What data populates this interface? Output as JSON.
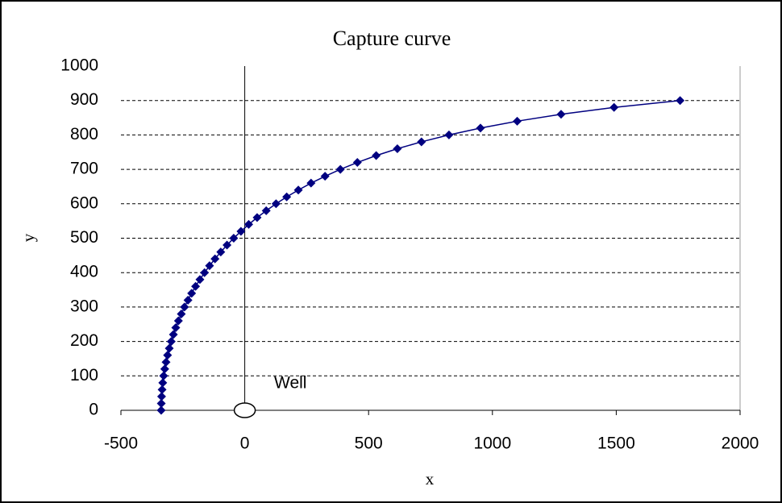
{
  "chart_data": {
    "type": "scatter_line",
    "title": "Capture curve",
    "x_label": "x",
    "y_label": "y",
    "annotation": "Well",
    "series": [
      {
        "name": "Capture curve",
        "color": "#000080",
        "x": [
          -337.4,
          -337.0,
          -335.8,
          -333.8,
          -331.1,
          -327.5,
          -323.1,
          -317.8,
          -311.7,
          -304.8,
          -296.9,
          -288.2,
          -278.6,
          -267.9,
          -256.2,
          -243.4,
          -229.3,
          -214.6,
          -198.6,
          -181.1,
          -162.5,
          -142.2,
          -120.2,
          -96.9,
          -71.7,
          -44.6,
          -15.4,
          16.0,
          49.9,
          86.6,
          126.3,
          169.4,
          216.4,
          267.6,
          324.2,
          386.0,
          454.7,
          530.7,
          616.2,
          713.5,
          824.6,
          951.7,
          1100.0,
          1277.2,
          1491.2,
          1757.8
        ],
        "values": [
          0,
          20,
          40,
          60,
          80,
          100,
          120,
          140,
          160,
          180,
          200,
          220,
          240,
          260,
          280,
          300,
          320,
          340,
          360,
          380,
          400,
          420,
          440,
          460,
          480,
          500,
          520,
          540,
          560,
          580,
          600,
          620,
          640,
          660,
          680,
          700,
          720,
          740,
          760,
          780,
          800,
          820,
          840,
          860,
          880,
          900
        ]
      }
    ],
    "xlim": [
      -500,
      2000
    ],
    "xticks": [
      -500,
      0,
      500,
      1000,
      1500,
      2000
    ],
    "ylim": [
      0,
      1000
    ],
    "yticks": [
      0,
      100,
      200,
      300,
      400,
      500,
      600,
      700,
      800,
      900,
      1000
    ],
    "grid": true
  }
}
